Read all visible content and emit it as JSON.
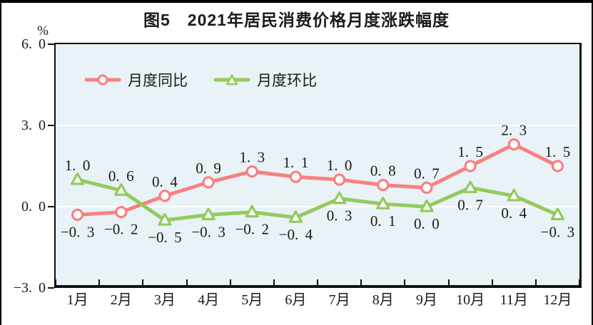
{
  "figure": {
    "title": "图5　2021年居民消费价格月度涨跌幅度",
    "unit_label": "%"
  },
  "legend": [
    {
      "label": "月度同比",
      "color": "#f88080",
      "marker": "circle"
    },
    {
      "label": "月度环比",
      "color": "#92cb5c",
      "marker": "triangle"
    }
  ],
  "chart_data": {
    "type": "line",
    "title": "图5　2021年居民消费价格月度涨跌幅度",
    "categories": [
      "1月",
      "2月",
      "3月",
      "4月",
      "5月",
      "6月",
      "7月",
      "8月",
      "9月",
      "10月",
      "11月",
      "12月"
    ],
    "series": [
      {
        "name": "月度同比",
        "color": "#f88080",
        "marker": "circle",
        "values": [
          -0.3,
          -0.2,
          0.4,
          0.9,
          1.3,
          1.1,
          1.0,
          0.8,
          0.7,
          1.5,
          2.3,
          1.5
        ]
      },
      {
        "name": "月度环比",
        "color": "#92cb5c",
        "marker": "triangle",
        "values": [
          1.0,
          0.6,
          -0.5,
          -0.3,
          -0.2,
          -0.4,
          0.3,
          0.1,
          0.0,
          0.7,
          0.4,
          -0.3
        ]
      }
    ],
    "ylabel": "%",
    "yticks": [
      6.0,
      3.0,
      0.0,
      -3.0
    ],
    "ylim": [
      -3.0,
      6.0
    ],
    "grid": true,
    "gridline_color": "#ffffff",
    "plot_bg": "#e9f2f6",
    "legend_position": "top-left-inside",
    "data_labels": true
  }
}
